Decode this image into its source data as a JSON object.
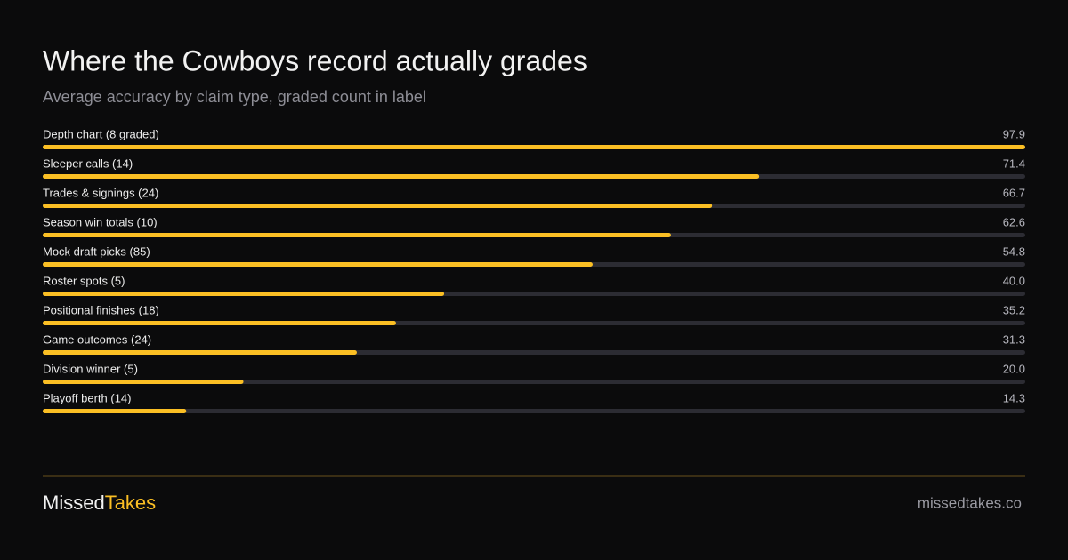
{
  "chart_data": {
    "type": "bar",
    "orientation": "horizontal",
    "title": "Where the Cowboys record actually grades",
    "subtitle": "Average accuracy by claim type, graded count in label",
    "categories": [
      "Depth chart (8 graded)",
      "Sleeper calls (14)",
      "Trades & signings (24)",
      "Season win totals (10)",
      "Mock draft picks (85)",
      "Roster spots (5)",
      "Positional finishes (18)",
      "Game outcomes (24)",
      "Division winner (5)",
      "Playoff berth (14)"
    ],
    "values": [
      97.9,
      71.4,
      66.7,
      62.6,
      54.8,
      40,
      35.2,
      31.3,
      20,
      14.3
    ],
    "value_labels": [
      "97.9",
      "71.4",
      "66.7",
      "62.6",
      "54.8",
      "40.0",
      "35.2",
      "31.3",
      "20.0",
      "14.3"
    ],
    "color": "#fbbf24"
  },
  "footer": {
    "brand_first": "Missed",
    "brand_second": "Takes",
    "url": "missedtakes.co"
  }
}
